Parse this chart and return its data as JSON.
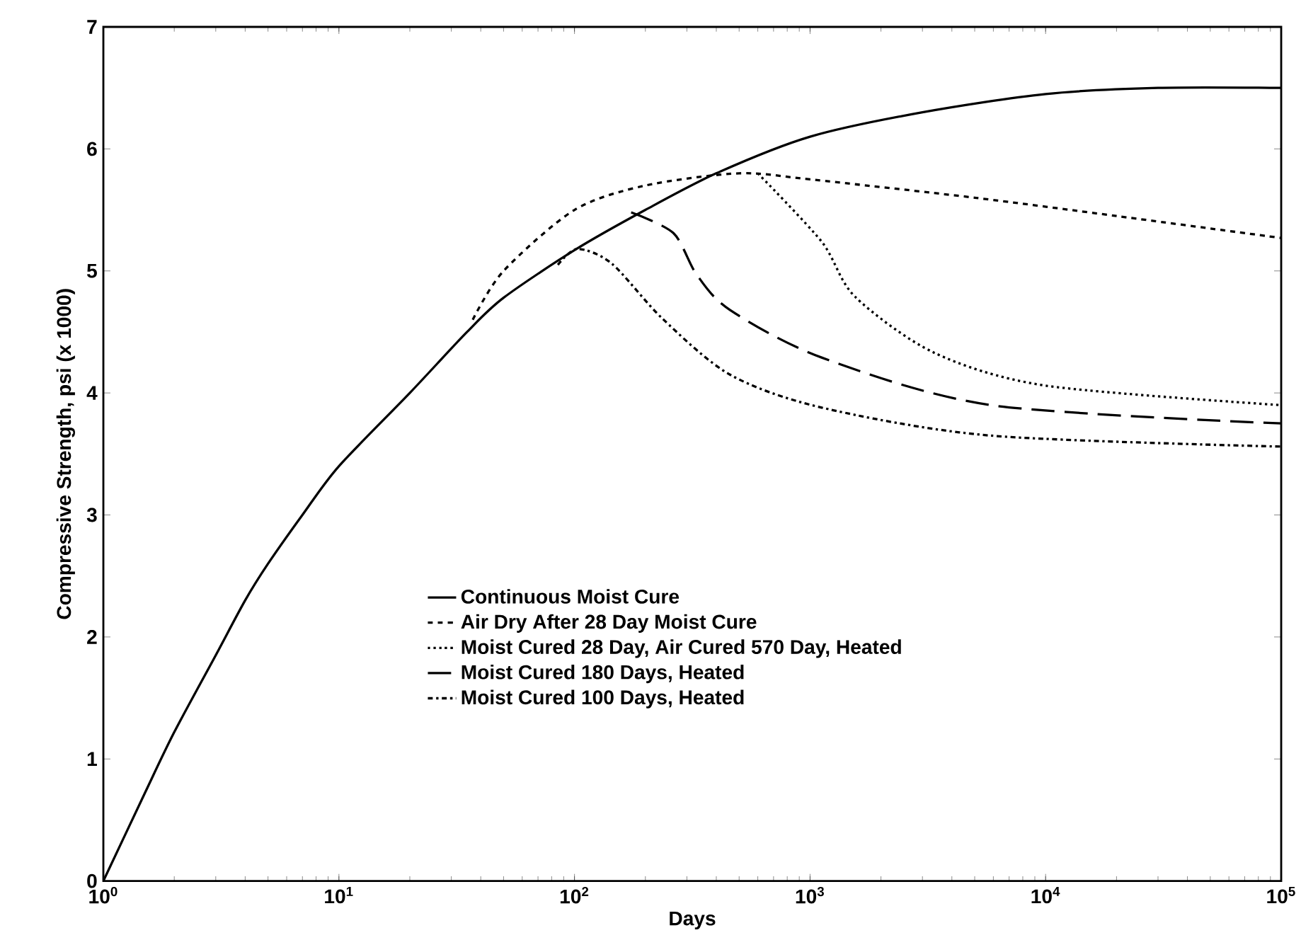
{
  "chart_data": {
    "type": "line",
    "xlabel": "Days",
    "ylabel": "Compressive Strength, psi (x 1000)",
    "log": "x",
    "xlim": [
      1,
      100000
    ],
    "ylim": [
      0,
      7
    ],
    "xticks": [
      {
        "value": 1,
        "label": "10$^{0}$"
      },
      {
        "value": 10,
        "label": "10$^{1}$"
      },
      {
        "value": 100,
        "label": "10$^{2}$"
      },
      {
        "value": 1000,
        "label": "10$^{3}$"
      },
      {
        "value": 10000,
        "label": "10$^{4}$"
      },
      {
        "value": 100000,
        "label": "10$^{5}$"
      }
    ],
    "yticks": [
      0,
      1,
      2,
      3,
      4,
      5,
      6,
      7
    ],
    "grid": false,
    "legend": "bottom",
    "marker": "none",
    "series": [
      {
        "name": "Continuous Moist Cure",
        "color": "#000000",
        "line_style": "solid",
        "x": [
          1,
          1.5,
          2,
          3,
          4,
          5,
          7,
          10,
          20,
          35,
          50,
          100,
          200,
          400,
          1000,
          3000,
          10000,
          30000,
          100000
        ],
        "values": [
          0,
          0.72,
          1.22,
          1.85,
          2.3,
          2.6,
          3.0,
          3.4,
          4.0,
          4.5,
          4.78,
          5.17,
          5.5,
          5.8,
          6.1,
          6.3,
          6.45,
          6.5,
          6.5
        ]
      },
      {
        "name": "Air Dry After 28 Day Moist Cure",
        "color": "#000000",
        "line_style": "dashed",
        "x": [
          37,
          50,
          100,
          200,
          500,
          1000,
          5000,
          20000,
          100000
        ],
        "values": [
          4.6,
          5.0,
          5.5,
          5.7,
          5.8,
          5.75,
          5.6,
          5.45,
          5.27
        ]
      },
      {
        "name": "Moist Cured 28 Day, Air Cured 570 Day, Heated",
        "color": "#000000",
        "line_style": "dotted",
        "x": [
          600,
          1120,
          1550,
          3360,
          10000,
          100000
        ],
        "values": [
          5.8,
          5.24,
          4.79,
          4.33,
          4.06,
          3.9
        ]
      },
      {
        "name": "Moist Cured 180 Days, Heated",
        "color": "#000000",
        "line_style": "long dashed",
        "x": [
          174,
          263,
          330,
          457,
          1120,
          5860,
          100000
        ],
        "values": [
          5.48,
          5.31,
          4.97,
          4.68,
          4.29,
          3.9,
          3.75
        ]
      },
      {
        "name": "Moist Cured 100 Days, Heated",
        "color": "#000000",
        "line_style": "dashdot",
        "x": [
          85,
          103,
          144,
          236,
          457,
          1120,
          5860,
          100000
        ],
        "values": [
          5.05,
          5.18,
          5.06,
          4.61,
          4.15,
          3.88,
          3.65,
          3.56
        ]
      }
    ]
  }
}
